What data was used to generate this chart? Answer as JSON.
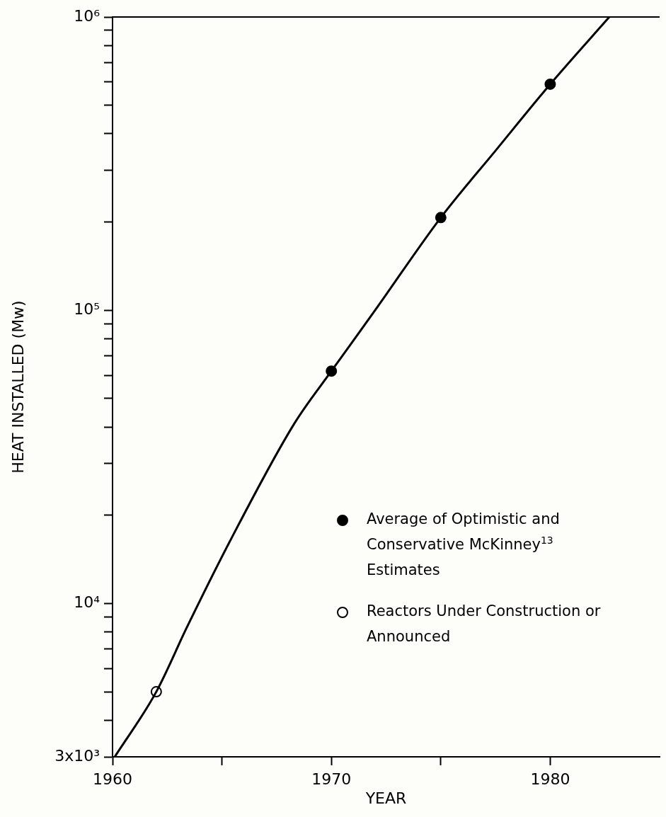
{
  "chart_data": {
    "type": "line",
    "xlabel": "YEAR",
    "ylabel": "HEAT INSTALLED (Mw)",
    "log": "y",
    "grid": false,
    "legend": "bottom right",
    "xlim": [
      1960,
      1985
    ],
    "xticks": [
      1960,
      {
        "value": 1965,
        "label": null
      },
      1970,
      {
        "value": 1975,
        "label": null
      },
      1980
    ],
    "ylim": [
      3000,
      1000000
    ],
    "yticks": [
      {
        "value": 3000,
        "label": "3x10³"
      },
      {
        "value": 4000,
        "label": null
      },
      {
        "value": 5000,
        "label": null
      },
      {
        "value": 6000,
        "label": null
      },
      {
        "value": 7000,
        "label": null
      },
      {
        "value": 8000,
        "label": null
      },
      {
        "value": 9000,
        "label": null
      },
      {
        "value": 10000,
        "label": "10⁴"
      },
      {
        "value": 20000,
        "label": null
      },
      {
        "value": 30000,
        "label": null
      },
      {
        "value": 40000,
        "label": null
      },
      {
        "value": 50000,
        "label": null
      },
      {
        "value": 60000,
        "label": null
      },
      {
        "value": 70000,
        "label": null
      },
      {
        "value": 80000,
        "label": null
      },
      {
        "value": 90000,
        "label": null
      },
      {
        "value": 100000,
        "label": "10⁵"
      },
      {
        "value": 200000,
        "label": null
      },
      {
        "value": 300000,
        "label": null
      },
      {
        "value": 400000,
        "label": null
      },
      {
        "value": 500000,
        "label": null
      },
      {
        "value": 600000,
        "label": null
      },
      {
        "value": 700000,
        "label": null
      },
      {
        "value": 800000,
        "label": null
      },
      {
        "value": 900000,
        "label": null
      },
      {
        "value": 1000000,
        "label": "10⁶"
      }
    ],
    "series": [
      {
        "type": "line",
        "color": "#000000",
        "marker": "none",
        "line_style": "solid",
        "x": [
          1960.1,
          1962,
          1963.4,
          1965.4,
          1968.3,
          1970,
          1972,
          1975,
          1977.5,
          1980,
          1982.7
        ],
        "values": [
          3000,
          5000,
          8300,
          16500,
          41000,
          62000,
          100000,
          207000,
          350000,
          590000,
          1000000
        ]
      },
      {
        "type": "scatter",
        "name": "Average of Optimistic and Conservative McKinney$^{13}$ Estimates",
        "color": "#000000",
        "marker": "circle",
        "x": [
          1970,
          1975,
          1980
        ],
        "values": [
          62000,
          207000,
          590000
        ]
      },
      {
        "type": "scatter",
        "name": "Reactors Under Construction or Announced",
        "color": "#ffffff",
        "marker": "circle",
        "x": [
          1962
        ],
        "values": [
          5000
        ]
      }
    ]
  }
}
